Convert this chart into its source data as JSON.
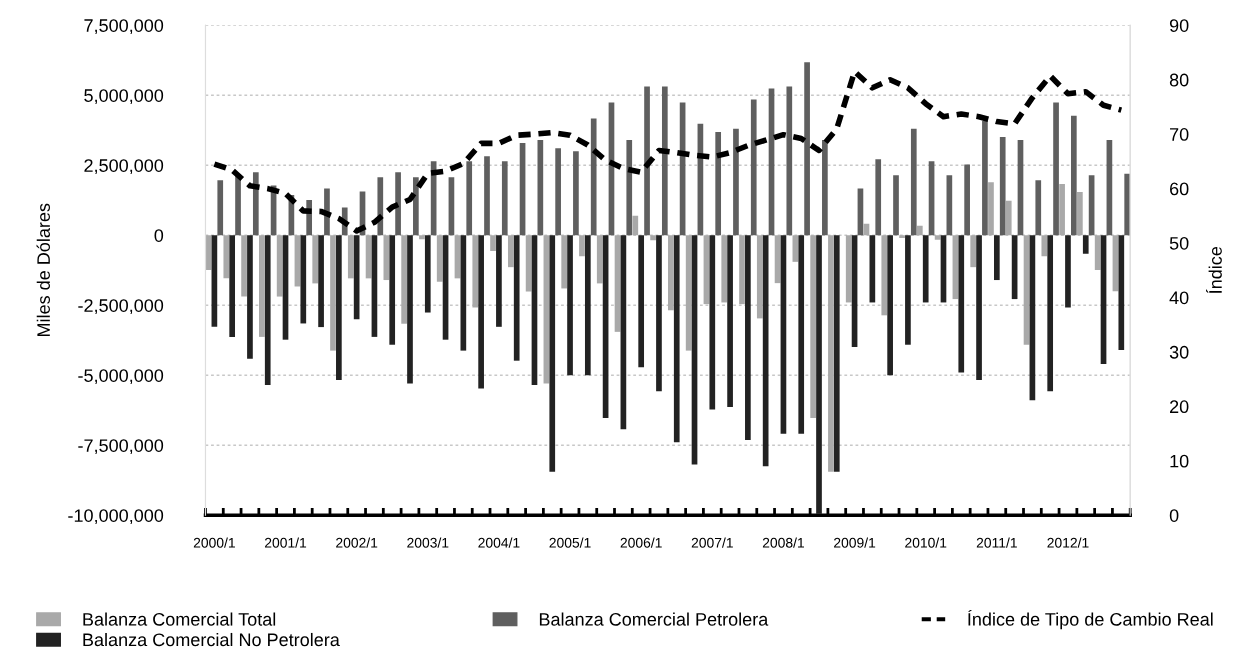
{
  "chart_data": {
    "type": "bar",
    "ylabel": "Miles de Dólares",
    "y2label": "Índice",
    "categories": [
      "2000/1",
      null,
      null,
      null,
      "2001/1",
      null,
      null,
      null,
      "2002/1",
      null,
      null,
      null,
      "2003/1",
      null,
      null,
      null,
      "2004/1",
      null,
      null,
      null,
      "2005/1",
      null,
      null,
      null,
      "2006/1",
      null,
      null,
      null,
      "2007/1",
      null,
      null,
      null,
      "2008/1",
      null,
      null,
      null,
      "2009/1",
      null,
      null,
      null,
      "2010/1",
      null,
      null,
      null,
      "2011/1",
      null,
      null,
      null,
      "2012/1",
      null,
      null,
      null
    ],
    "series": [
      {
        "name": "Balanza Comercial Total",
        "color": "#a9a9a9",
        "values": [
          -1240000,
          -1540000,
          -2190000,
          -3630000,
          -2190000,
          -1830000,
          -1720000,
          -4120000,
          -1540000,
          -1540000,
          -1600000,
          -3160000,
          -140000,
          -1660000,
          -1540000,
          -2580000,
          -560000,
          -1140000,
          -2010000,
          -5290000,
          -1900000,
          -750000,
          -1720000,
          -3450000,
          700000,
          -180000,
          -2680000,
          -4120000,
          -2460000,
          -2400000,
          -2460000,
          -2970000,
          -1710000,
          -950000,
          -6530000,
          -8450000,
          -2400000,
          410000,
          -2860000,
          -100000,
          340000,
          -160000,
          -2280000,
          -1140000,
          1890000,
          1230000,
          -3910000,
          -750000,
          1830000,
          1540000,
          -1240000,
          -2000000
        ]
      },
      {
        "name": "Balanza Comercial No Petrolera",
        "color": "#222222",
        "values": [
          -3270000,
          -3630000,
          -4410000,
          -5350000,
          -3730000,
          -3150000,
          -3280000,
          -5170000,
          -3000000,
          -3630000,
          -3910000,
          -5290000,
          -2760000,
          -3730000,
          -4120000,
          -5470000,
          -3270000,
          -4480000,
          -5350000,
          -8450000,
          -5000000,
          -5000000,
          -6530000,
          -6930000,
          -4710000,
          -5570000,
          -7390000,
          -8190000,
          -6220000,
          -6130000,
          -7310000,
          -8250000,
          -7090000,
          -7090000,
          -9950000,
          -8450000,
          -3990000,
          -2400000,
          -5000000,
          -3910000,
          -2400000,
          -2400000,
          -4900000,
          -5170000,
          -1600000,
          -2280000,
          -5890000,
          -5570000,
          -2580000,
          -660000,
          -4600000,
          -4100000
        ]
      },
      {
        "name": "Balanza Comercial Petrolera",
        "color": "#5f5f5f",
        "values": [
          1960000,
          2140000,
          2250000,
          1780000,
          1440000,
          1260000,
          1670000,
          990000,
          1560000,
          2070000,
          2250000,
          2070000,
          2640000,
          2070000,
          2640000,
          2820000,
          2640000,
          3290000,
          3400000,
          3110000,
          3000000,
          4170000,
          4740000,
          3400000,
          5310000,
          5310000,
          4740000,
          3980000,
          3690000,
          3800000,
          4850000,
          5240000,
          5310000,
          6180000,
          3400000,
          0,
          1670000,
          2710000,
          2140000,
          3800000,
          2640000,
          2140000,
          2530000,
          4090000,
          3510000,
          3400000,
          1960000,
          4740000,
          4270000,
          2140000,
          3400000,
          2200000
        ]
      },
      {
        "name": "Índice de Tipo de Cambio Real",
        "type": "line",
        "axis": "y2",
        "color": "#000000",
        "line_style": "dashed",
        "values": [
          64.5,
          63.4,
          60.5,
          60.0,
          59.1,
          55.9,
          55.8,
          54.5,
          52.2,
          53.8,
          56.6,
          58.0,
          62.8,
          63.2,
          64.6,
          68.3,
          68.3,
          69.8,
          70.0,
          70.3,
          69.8,
          68.0,
          65.2,
          63.7,
          63.0,
          67.0,
          66.6,
          66.1,
          65.8,
          66.6,
          67.9,
          68.9,
          69.9,
          69.2,
          67.0,
          71.0,
          81.5,
          78.5,
          80.0,
          78.5,
          75.6,
          73.2,
          73.7,
          73.2,
          72.3,
          71.9,
          76.7,
          80.7,
          77.4,
          77.8,
          75.3,
          74.4
        ]
      }
    ],
    "ylim": [
      -10000000,
      7500000
    ],
    "yticks": [
      {
        "value": -10000000,
        "label": "-10,000,000"
      },
      {
        "value": -7500000,
        "label": "-7,500,000"
      },
      {
        "value": -5000000,
        "label": "-5,000,000"
      },
      {
        "value": -2500000,
        "label": "-2,500,000"
      },
      0,
      {
        "value": 2500000,
        "label": "2,500,000"
      },
      {
        "value": 5000000,
        "label": "5,000,000"
      },
      {
        "value": 7500000,
        "label": "7,500,000"
      }
    ],
    "y2lim": [
      0,
      90
    ],
    "y2ticks": [
      0,
      10,
      20,
      30,
      40,
      50,
      60,
      70,
      80,
      90
    ],
    "grid": "y",
    "legend": "bottom"
  }
}
